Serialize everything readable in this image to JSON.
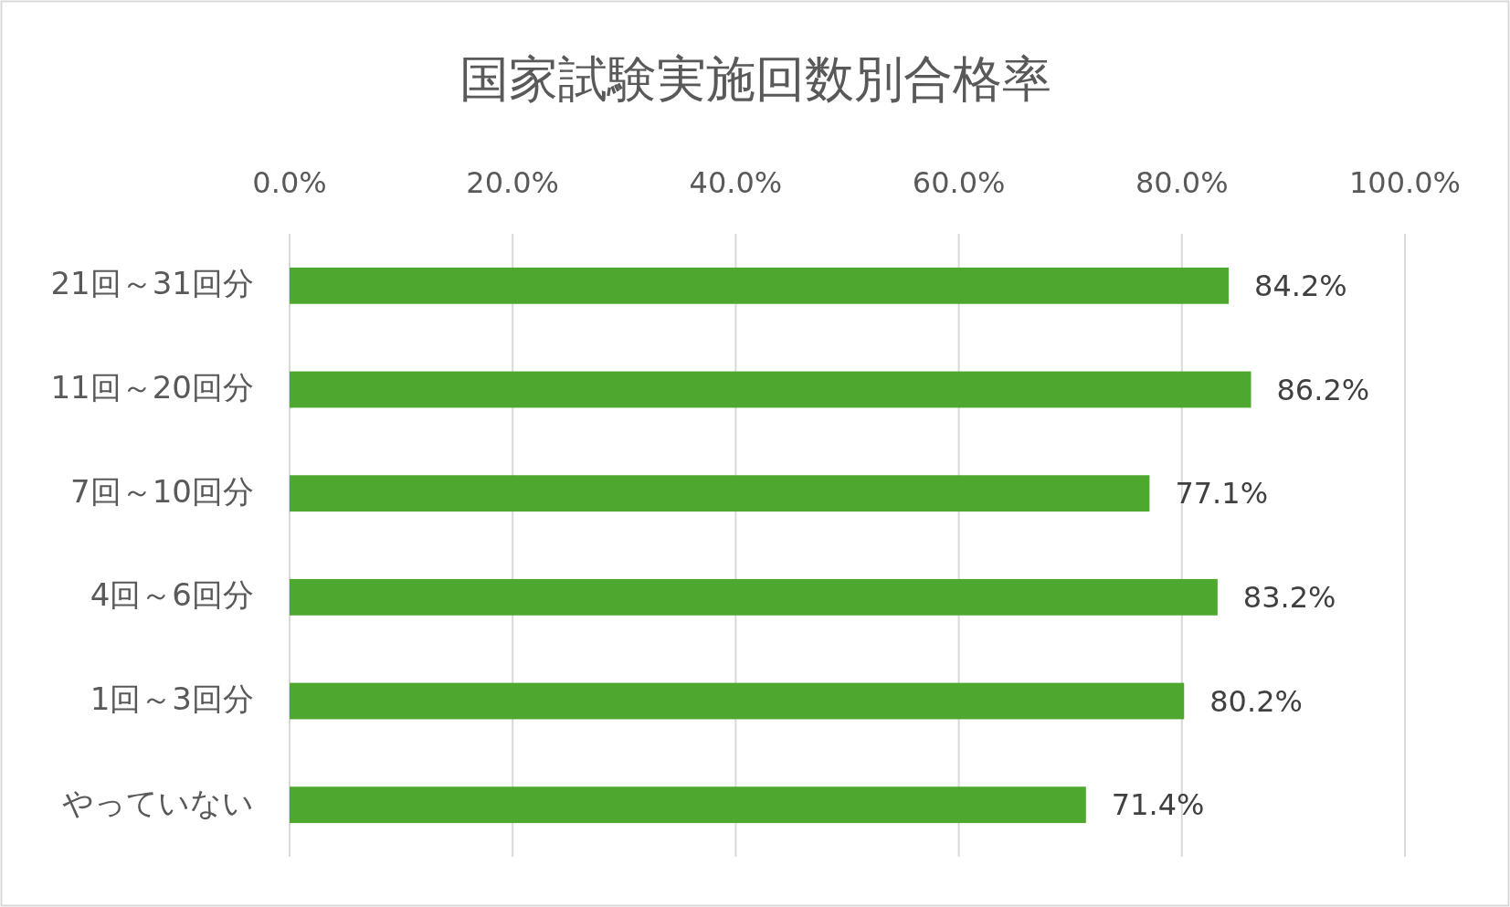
{
  "chart_data": {
    "type": "bar",
    "orientation": "horizontal",
    "title": "国家試験実施回数別合格率",
    "categories": [
      "21回～31回分",
      "11回～20回分",
      "7回～10回分",
      "4回～6回分",
      "1回～3回分",
      "やっていない"
    ],
    "values": [
      84.2,
      86.2,
      77.1,
      83.2,
      80.2,
      71.4
    ],
    "value_labels": [
      "84.2%",
      "86.2%",
      "77.1%",
      "83.2%",
      "80.2%",
      "71.4%"
    ],
    "color": "#4ea72e",
    "xlim": [
      0,
      100
    ],
    "xticks": [
      {
        "value": 0,
        "label": "0.0%"
      },
      {
        "value": 20,
        "label": "20.0%"
      },
      {
        "value": 40,
        "label": "40.0%"
      },
      {
        "value": 60,
        "label": "60.0%"
      },
      {
        "value": 80,
        "label": "80.0%"
      },
      {
        "value": 100,
        "label": "100.0%"
      }
    ],
    "grid": "x"
  }
}
